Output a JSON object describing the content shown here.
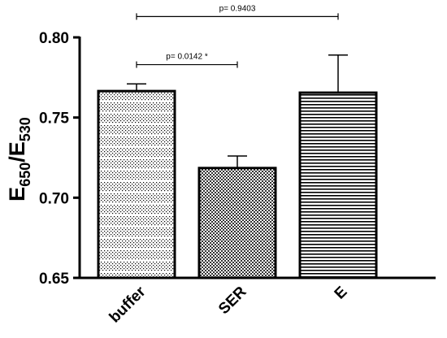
{
  "chart_data": {
    "type": "bar",
    "categories": [
      "buffer",
      "SER",
      "E"
    ],
    "values": [
      0.7665,
      0.7185,
      0.7655
    ],
    "errors": [
      0.0045,
      0.0075,
      0.0235
    ],
    "ylabel": {
      "main1": "E",
      "sub1": "650",
      "main2": "/E",
      "sub2": "530"
    },
    "ylim": [
      0.65,
      0.8
    ],
    "yticks": [
      0.65,
      0.7,
      0.75,
      0.8
    ],
    "ytick_labels": [
      "0.65",
      "0.70",
      "0.75",
      "0.80"
    ],
    "grid": false,
    "annotations": [
      {
        "text": "p= 0.0142 *",
        "from": "buffer",
        "to": "SER",
        "y": 0.783
      },
      {
        "text": "p= 0.9403",
        "from": "buffer",
        "to": "E",
        "y": 0.813
      }
    ],
    "colors": {
      "bar_fill": "#ffffff",
      "bar_stroke": "#000000",
      "pattern": "#000000"
    }
  }
}
